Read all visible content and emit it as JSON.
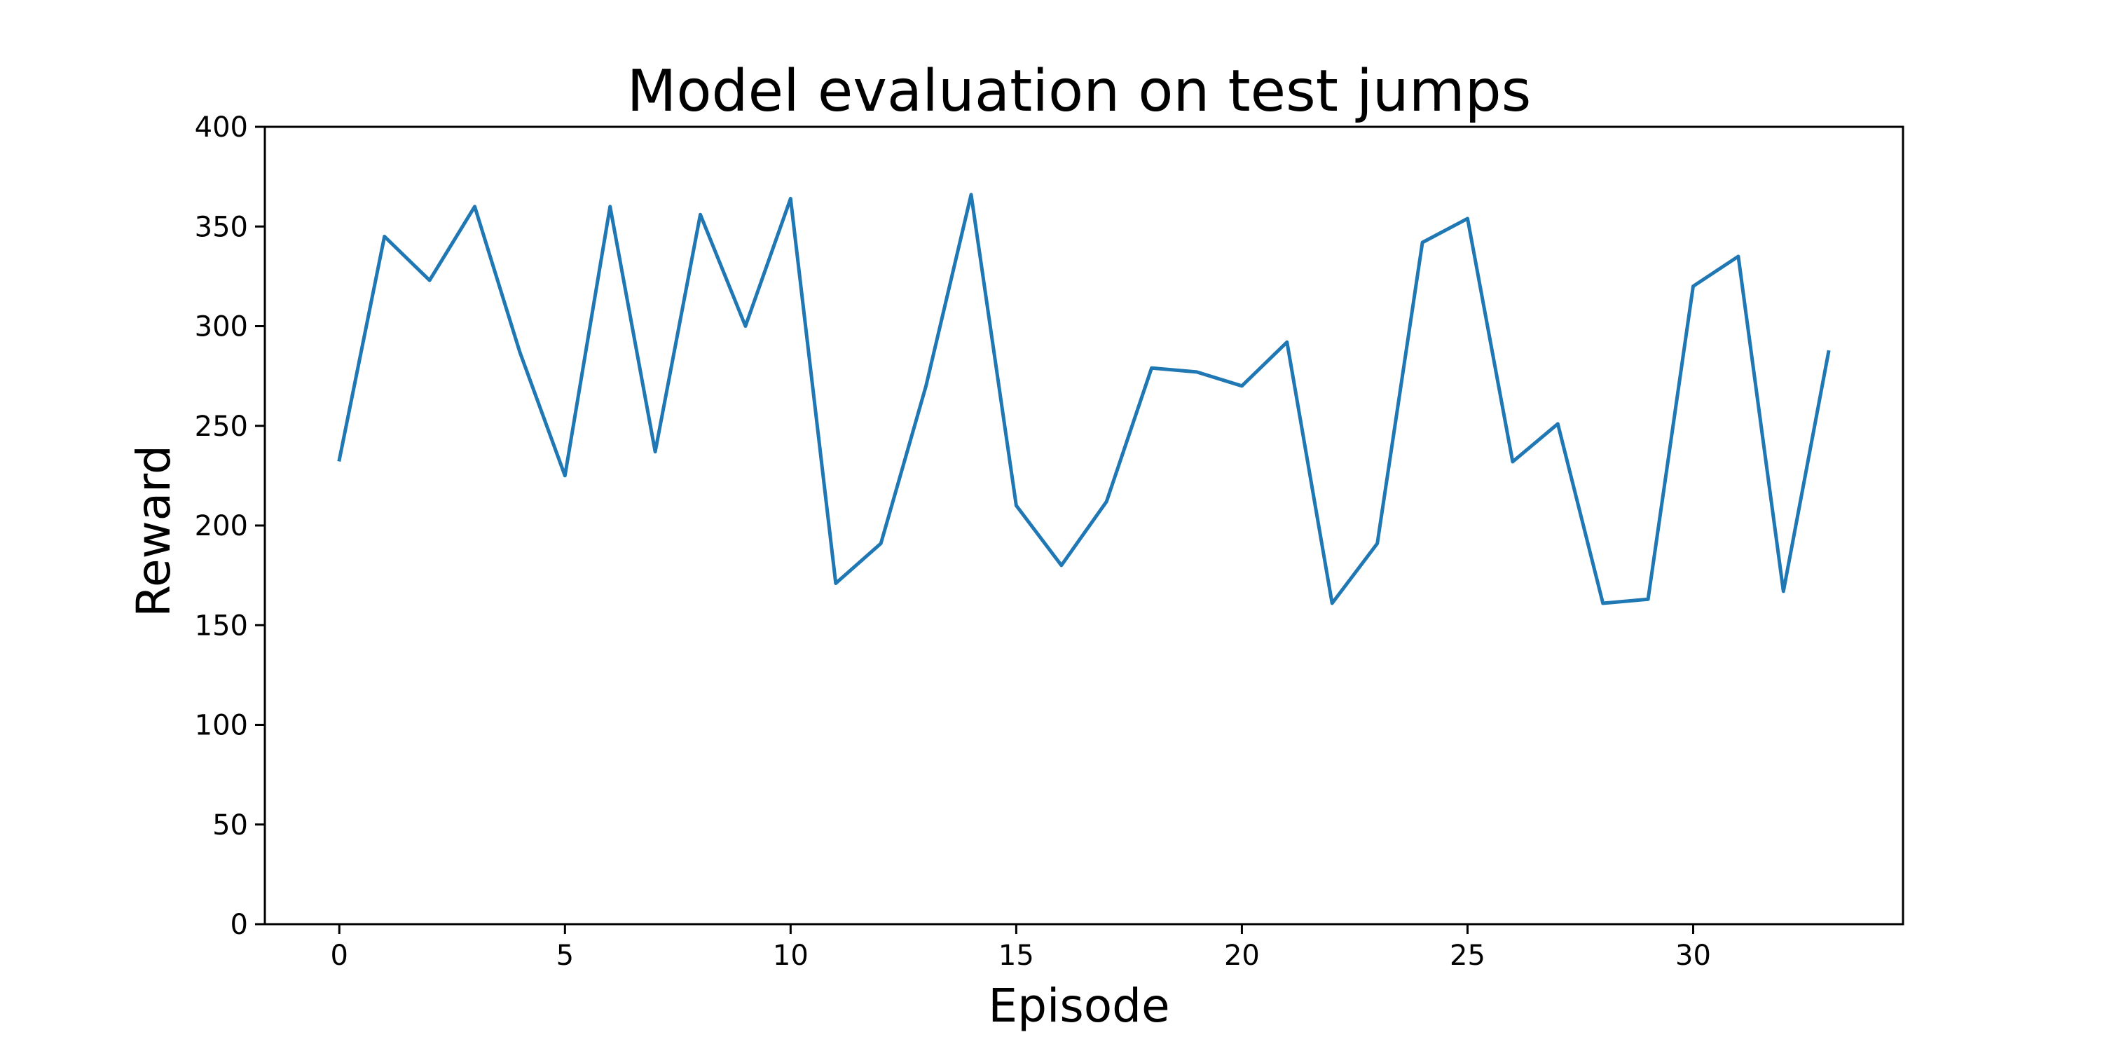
{
  "chart_data": {
    "type": "line",
    "title": "Model evaluation on test jumps",
    "xlabel": "Episode",
    "ylabel": "Reward",
    "xlim": [
      -1.65,
      34.65
    ],
    "ylim": [
      0,
      400
    ],
    "xticks": [
      0,
      5,
      10,
      15,
      20,
      25,
      30
    ],
    "yticks": [
      0,
      50,
      100,
      150,
      200,
      250,
      300,
      350,
      400
    ],
    "grid": false,
    "series": [
      {
        "color": "#1f77b4",
        "x": [
          0,
          1,
          2,
          3,
          4,
          5,
          6,
          7,
          8,
          9,
          10,
          11,
          12,
          13,
          14,
          15,
          16,
          17,
          18,
          19,
          20,
          21,
          22,
          23,
          24,
          25,
          26,
          27,
          28,
          29,
          30,
          31,
          32,
          33
        ],
        "values": [
          233,
          345,
          323,
          360,
          287,
          225,
          360,
          237,
          356,
          300,
          364,
          171,
          191,
          270,
          366,
          210,
          180,
          212,
          279,
          277,
          270,
          292,
          161,
          191,
          342,
          354,
          232,
          251,
          161,
          163,
          320,
          335,
          167,
          287
        ]
      }
    ]
  }
}
